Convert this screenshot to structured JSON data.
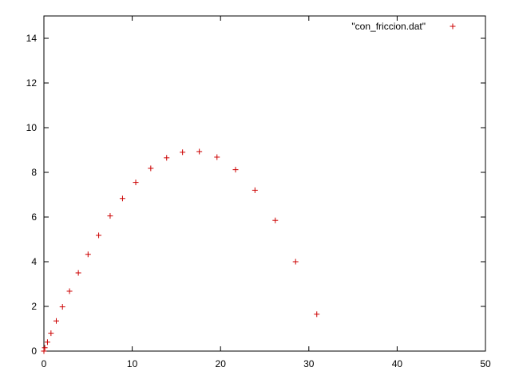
{
  "chart_data": {
    "type": "scatter",
    "legend": {
      "position": "top-right"
    },
    "grid": false,
    "xlim": [
      0,
      50
    ],
    "ylim": [
      0,
      15
    ],
    "xticks": [
      0,
      10,
      20,
      30,
      40,
      50
    ],
    "yticks": [
      0,
      2,
      4,
      6,
      8,
      10,
      12,
      14
    ],
    "series": [
      {
        "name": "\"con_friccion.dat\"",
        "color": "#cc0000",
        "marker": "plus",
        "x": [
          0.0,
          0.1,
          0.4,
          0.8,
          1.4,
          2.1,
          2.9,
          3.9,
          5.0,
          6.2,
          7.5,
          8.9,
          10.4,
          12.1,
          13.9,
          15.7,
          17.6,
          19.6,
          21.7,
          23.9,
          26.2,
          28.5,
          30.9
        ],
        "y": [
          0.0,
          0.15,
          0.4,
          0.8,
          1.35,
          1.98,
          2.68,
          3.5,
          4.33,
          5.18,
          6.05,
          6.83,
          7.55,
          8.18,
          8.65,
          8.9,
          8.93,
          8.68,
          8.12,
          7.2,
          5.85,
          4.0,
          1.65
        ]
      }
    ]
  }
}
